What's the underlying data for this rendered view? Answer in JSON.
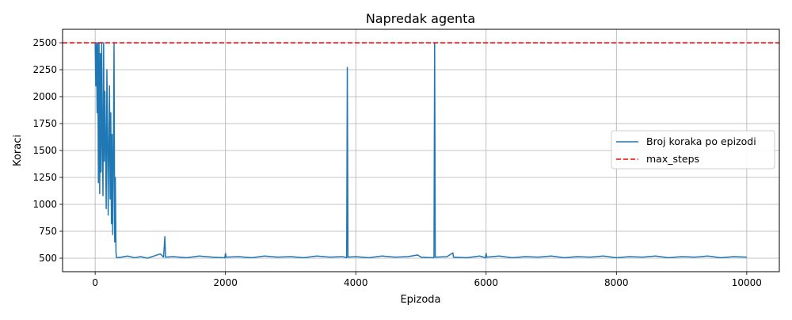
{
  "chart_data": {
    "type": "line",
    "title": "Napredak agenta",
    "xlabel": "Epizoda",
    "ylabel": "Koraci",
    "xlim": [
      -500,
      10500
    ],
    "ylim": [
      375,
      2625
    ],
    "xticks": [
      0,
      2000,
      4000,
      6000,
      8000,
      10000
    ],
    "yticks": [
      500,
      750,
      1000,
      1250,
      1500,
      1750,
      2000,
      2250,
      2500
    ],
    "grid": true,
    "legend_position": "center-right",
    "series": [
      {
        "name": "Broj koraka po epizodi",
        "color": "#1f77b4",
        "style": "solid",
        "points": [
          [
            0,
            2500
          ],
          [
            10,
            2100
          ],
          [
            20,
            2500
          ],
          [
            30,
            1850
          ],
          [
            40,
            2500
          ],
          [
            50,
            1200
          ],
          [
            60,
            2500
          ],
          [
            70,
            1100
          ],
          [
            80,
            2400
          ],
          [
            90,
            1300
          ],
          [
            100,
            2500
          ],
          [
            110,
            1600
          ],
          [
            120,
            1080
          ],
          [
            130,
            2500
          ],
          [
            140,
            1400
          ],
          [
            150,
            2050
          ],
          [
            160,
            1500
          ],
          [
            170,
            960
          ],
          [
            180,
            2250
          ],
          [
            190,
            1700
          ],
          [
            200,
            900
          ],
          [
            210,
            1550
          ],
          [
            220,
            2100
          ],
          [
            230,
            1050
          ],
          [
            240,
            1850
          ],
          [
            250,
            820
          ],
          [
            260,
            1650
          ],
          [
            270,
            720
          ],
          [
            280,
            1450
          ],
          [
            290,
            2500
          ],
          [
            300,
            650
          ],
          [
            310,
            1250
          ],
          [
            320,
            550
          ],
          [
            330,
            505
          ],
          [
            400,
            510
          ],
          [
            500,
            520
          ],
          [
            600,
            505
          ],
          [
            700,
            515
          ],
          [
            800,
            500
          ],
          [
            900,
            520
          ],
          [
            1000,
            540
          ],
          [
            1050,
            510
          ],
          [
            1070,
            700
          ],
          [
            1080,
            510
          ],
          [
            1200,
            515
          ],
          [
            1400,
            505
          ],
          [
            1600,
            520
          ],
          [
            1800,
            510
          ],
          [
            1990,
            505
          ],
          [
            2000,
            545
          ],
          [
            2010,
            510
          ],
          [
            2200,
            515
          ],
          [
            2400,
            505
          ],
          [
            2600,
            520
          ],
          [
            2800,
            510
          ],
          [
            3000,
            515
          ],
          [
            3200,
            505
          ],
          [
            3400,
            520
          ],
          [
            3600,
            510
          ],
          [
            3800,
            515
          ],
          [
            3860,
            505
          ],
          [
            3870,
            2270
          ],
          [
            3880,
            510
          ],
          [
            4000,
            515
          ],
          [
            4200,
            505
          ],
          [
            4400,
            520
          ],
          [
            4600,
            510
          ],
          [
            4800,
            515
          ],
          [
            4950,
            530
          ],
          [
            5000,
            510
          ],
          [
            5200,
            505
          ],
          [
            5210,
            2500
          ],
          [
            5220,
            510
          ],
          [
            5400,
            515
          ],
          [
            5490,
            550
          ],
          [
            5500,
            510
          ],
          [
            5700,
            505
          ],
          [
            5900,
            520
          ],
          [
            5990,
            505
          ],
          [
            6000,
            545
          ],
          [
            6010,
            510
          ],
          [
            6200,
            520
          ],
          [
            6400,
            505
          ],
          [
            6600,
            515
          ],
          [
            6800,
            510
          ],
          [
            7000,
            520
          ],
          [
            7200,
            505
          ],
          [
            7400,
            515
          ],
          [
            7600,
            510
          ],
          [
            7800,
            520
          ],
          [
            8000,
            505
          ],
          [
            8200,
            515
          ],
          [
            8400,
            510
          ],
          [
            8600,
            520
          ],
          [
            8800,
            505
          ],
          [
            9000,
            515
          ],
          [
            9200,
            510
          ],
          [
            9400,
            520
          ],
          [
            9600,
            505
          ],
          [
            9800,
            515
          ],
          [
            10000,
            510
          ]
        ]
      },
      {
        "name": "max_steps",
        "color": "#ff0000",
        "style": "dashed",
        "points": [
          [
            -500,
            2500
          ],
          [
            10500,
            2500
          ]
        ]
      }
    ]
  }
}
